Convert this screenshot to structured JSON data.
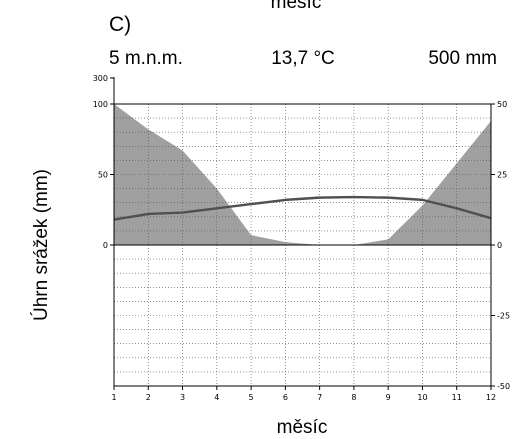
{
  "header": {
    "top_cut_text": "měsíc",
    "panel_label": "C)",
    "elevation": "5 m.n.m.",
    "mean_temperature": "13,7 °C",
    "annual_precipitation": "500 mm"
  },
  "chart_data": {
    "type": "area",
    "xlabel": "měsíc",
    "ylabel": "Úhrn srážek (mm)",
    "x": [
      1,
      2,
      3,
      4,
      5,
      6,
      7,
      8,
      9,
      10,
      11,
      12
    ],
    "x_ticks": [
      "1",
      "2",
      "3",
      "4",
      "5",
      "6",
      "7",
      "8",
      "9",
      "10",
      "11",
      "12"
    ],
    "xlim": [
      1,
      12
    ],
    "left_axis": {
      "ticks": [
        "0",
        "50",
        "100",
        "300"
      ],
      "range_mm": [
        -100,
        100
      ],
      "compressed_top_tick": "300"
    },
    "right_axis": {
      "ticks": [
        "50",
        "25",
        "0",
        "-25",
        "-50"
      ],
      "range_c": [
        -50,
        50
      ]
    },
    "series": [
      {
        "axis": "left",
        "color": "#a0a0a0",
        "values": [
          100,
          82,
          67,
          40,
          7,
          2,
          0,
          0,
          4,
          28,
          58,
          88
        ]
      },
      {
        "axis": "right",
        "color": "#505050",
        "values": [
          9,
          11,
          11.5,
          13,
          14.5,
          16,
          16.8,
          17,
          16.8,
          16,
          13,
          9.5
        ]
      }
    ],
    "grid": true
  }
}
